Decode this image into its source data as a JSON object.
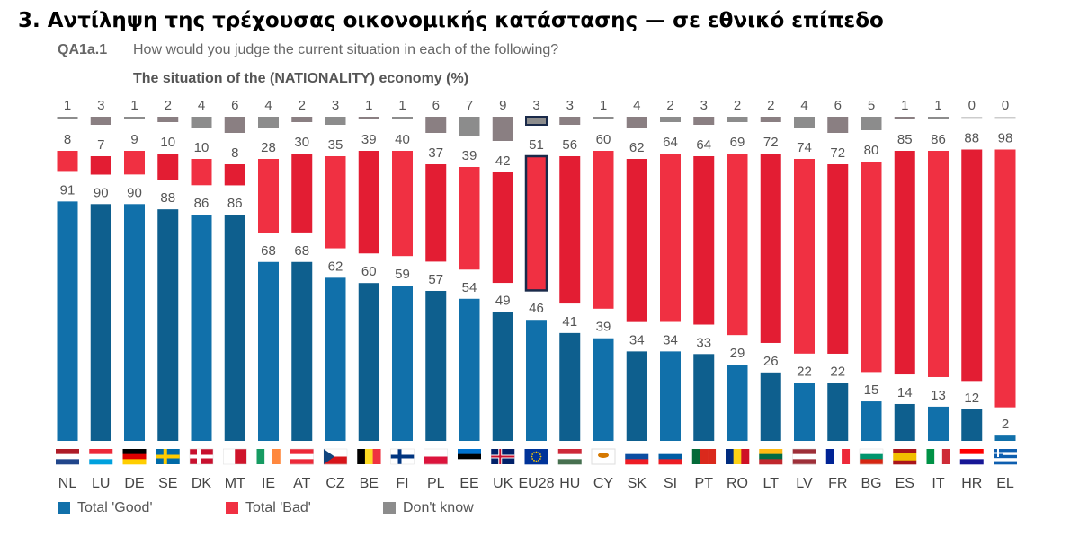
{
  "header": {
    "title": "3. Αντίληψη της τρέχουσας οικονομικής κατάστασης — σε εθνικό επίπεδο",
    "question_code": "QA1a.1",
    "question_text": "How would you judge the current situation in each of the following?",
    "subtitle": "The situation of the (NATIONALITY) economy (%)"
  },
  "colors": {
    "good": "#1170aa",
    "good_alt": "#0e5f8e",
    "bad": "#f03042",
    "bad_alt": "#e31d33",
    "dk": "#8c8c8c",
    "dk_alt": "#8a7f82",
    "highlight": "#1a2a4a"
  },
  "chart_data": {
    "type": "bar",
    "stacked": true,
    "title": "The situation of the (NATIONALITY) economy (%)",
    "categories": [
      "NL",
      "LU",
      "DE",
      "SE",
      "DK",
      "MT",
      "IE",
      "AT",
      "CZ",
      "BE",
      "FI",
      "PL",
      "EE",
      "UK",
      "EU28",
      "HU",
      "CY",
      "SK",
      "SI",
      "PT",
      "RO",
      "LT",
      "LV",
      "FR",
      "BG",
      "ES",
      "IT",
      "HR",
      "EL"
    ],
    "highlight": "EU28",
    "series": [
      {
        "name": "Total 'Good'",
        "values": [
          91,
          90,
          90,
          88,
          86,
          86,
          68,
          68,
          62,
          60,
          59,
          57,
          54,
          49,
          46,
          41,
          39,
          34,
          34,
          33,
          29,
          26,
          22,
          22,
          15,
          14,
          13,
          12,
          2
        ]
      },
      {
        "name": "Total 'Bad'",
        "values": [
          8,
          7,
          9,
          10,
          10,
          8,
          28,
          30,
          35,
          39,
          40,
          37,
          39,
          42,
          51,
          56,
          60,
          62,
          64,
          64,
          69,
          72,
          74,
          72,
          80,
          85,
          86,
          88,
          98
        ]
      },
      {
        "name": "Don't know",
        "values": [
          1,
          3,
          1,
          2,
          4,
          6,
          4,
          2,
          3,
          1,
          1,
          6,
          7,
          9,
          3,
          3,
          1,
          4,
          2,
          3,
          2,
          2,
          4,
          6,
          5,
          1,
          1,
          0,
          0
        ]
      }
    ],
    "legend_position": "bottom-left",
    "ylim": [
      0,
      100
    ],
    "grid": false
  },
  "legend": [
    {
      "label": "Total 'Good'"
    },
    {
      "label": "Total 'Bad'"
    },
    {
      "label": "Don't know"
    }
  ]
}
